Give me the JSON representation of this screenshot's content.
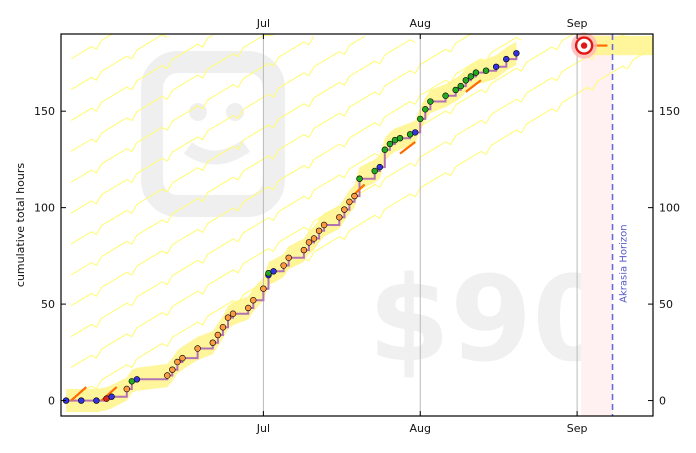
{
  "chart_data": {
    "type": "line",
    "ylabel": "cumulative total hours",
    "x_start": "2024-05-22",
    "x_end": "2024-09-16",
    "ylim": [
      -8,
      190
    ],
    "y_ticks": [
      0,
      50,
      100,
      150
    ],
    "x_ticks": [
      {
        "label": "Jul",
        "date": "2024-07-01"
      },
      {
        "label": "Aug",
        "date": "2024-08-01"
      },
      {
        "label": "Sep",
        "date": "2024-09-01"
      }
    ],
    "pledge_label": "$90",
    "horizon_label": "Akrasia Horizon",
    "horizon_date": "2024-09-08",
    "today": "2024-09-01",
    "goal_value": 184,
    "colors": {
      "data_line": "#b373b3",
      "road_band": "#fff58a",
      "guide_line": "#fffb7a",
      "moving_avg": "#ff6a00",
      "horizon": "#6a6ad8",
      "future_zone": "#fff1f1",
      "dot_green": "#22aa22",
      "dot_blue": "#3333dd",
      "dot_orange": "#ff9a40"
    },
    "points": [
      {
        "date": "2024-05-23",
        "value": 0,
        "color": "blue"
      },
      {
        "date": "2024-05-26",
        "value": 0,
        "color": "blue"
      },
      {
        "date": "2024-05-29",
        "value": 0,
        "color": "blue"
      },
      {
        "date": "2024-05-31",
        "value": 1,
        "color": "red"
      },
      {
        "date": "2024-06-01",
        "value": 2,
        "color": "blue"
      },
      {
        "date": "2024-06-04",
        "value": 6,
        "color": "orange"
      },
      {
        "date": "2024-06-05",
        "value": 10,
        "color": "green"
      },
      {
        "date": "2024-06-06",
        "value": 11,
        "color": "blue"
      },
      {
        "date": "2024-06-12",
        "value": 13,
        "color": "orange"
      },
      {
        "date": "2024-06-13",
        "value": 16,
        "color": "orange"
      },
      {
        "date": "2024-06-14",
        "value": 20,
        "color": "orange"
      },
      {
        "date": "2024-06-15",
        "value": 22,
        "color": "orange"
      },
      {
        "date": "2024-06-18",
        "value": 27,
        "color": "orange"
      },
      {
        "date": "2024-06-21",
        "value": 30,
        "color": "orange"
      },
      {
        "date": "2024-06-22",
        "value": 34,
        "color": "orange"
      },
      {
        "date": "2024-06-23",
        "value": 38,
        "color": "orange"
      },
      {
        "date": "2024-06-24",
        "value": 43,
        "color": "orange"
      },
      {
        "date": "2024-06-25",
        "value": 45,
        "color": "orange"
      },
      {
        "date": "2024-06-28",
        "value": 48,
        "color": "orange"
      },
      {
        "date": "2024-06-29",
        "value": 52,
        "color": "orange"
      },
      {
        "date": "2024-07-01",
        "value": 58,
        "color": "orange"
      },
      {
        "date": "2024-07-02",
        "value": 65,
        "color": "blue"
      },
      {
        "date": "2024-07-02",
        "value": 66,
        "color": "green"
      },
      {
        "date": "2024-07-03",
        "value": 67,
        "color": "blue"
      },
      {
        "date": "2024-07-05",
        "value": 70,
        "color": "orange"
      },
      {
        "date": "2024-07-06",
        "value": 74,
        "color": "orange"
      },
      {
        "date": "2024-07-09",
        "value": 78,
        "color": "orange"
      },
      {
        "date": "2024-07-10",
        "value": 82,
        "color": "orange"
      },
      {
        "date": "2024-07-11",
        "value": 84,
        "color": "orange"
      },
      {
        "date": "2024-07-12",
        "value": 88,
        "color": "orange"
      },
      {
        "date": "2024-07-13",
        "value": 91,
        "color": "orange"
      },
      {
        "date": "2024-07-16",
        "value": 95,
        "color": "orange"
      },
      {
        "date": "2024-07-17",
        "value": 99,
        "color": "orange"
      },
      {
        "date": "2024-07-18",
        "value": 103,
        "color": "orange"
      },
      {
        "date": "2024-07-19",
        "value": 106,
        "color": "orange"
      },
      {
        "date": "2024-07-20",
        "value": 115,
        "color": "green"
      },
      {
        "date": "2024-07-23",
        "value": 119,
        "color": "green"
      },
      {
        "date": "2024-07-24",
        "value": 121,
        "color": "blue"
      },
      {
        "date": "2024-07-25",
        "value": 130,
        "color": "green"
      },
      {
        "date": "2024-07-26",
        "value": 133,
        "color": "green"
      },
      {
        "date": "2024-07-27",
        "value": 135,
        "color": "green"
      },
      {
        "date": "2024-07-28",
        "value": 136,
        "color": "green"
      },
      {
        "date": "2024-07-30",
        "value": 138,
        "color": "green"
      },
      {
        "date": "2024-07-31",
        "value": 139,
        "color": "blue"
      },
      {
        "date": "2024-08-01",
        "value": 146,
        "color": "green"
      },
      {
        "date": "2024-08-02",
        "value": 151,
        "color": "green"
      },
      {
        "date": "2024-08-03",
        "value": 155,
        "color": "green"
      },
      {
        "date": "2024-08-06",
        "value": 158,
        "color": "green"
      },
      {
        "date": "2024-08-08",
        "value": 161,
        "color": "green"
      },
      {
        "date": "2024-08-09",
        "value": 163,
        "color": "green"
      },
      {
        "date": "2024-08-10",
        "value": 166,
        "color": "green"
      },
      {
        "date": "2024-08-11",
        "value": 168,
        "color": "green"
      },
      {
        "date": "2024-08-12",
        "value": 170,
        "color": "green"
      },
      {
        "date": "2024-08-14",
        "value": 171,
        "color": "green"
      },
      {
        "date": "2024-08-16",
        "value": 173,
        "color": "blue"
      },
      {
        "date": "2024-08-18",
        "value": 177,
        "color": "blue"
      },
      {
        "date": "2024-08-20",
        "value": 180,
        "color": "blue"
      }
    ]
  }
}
